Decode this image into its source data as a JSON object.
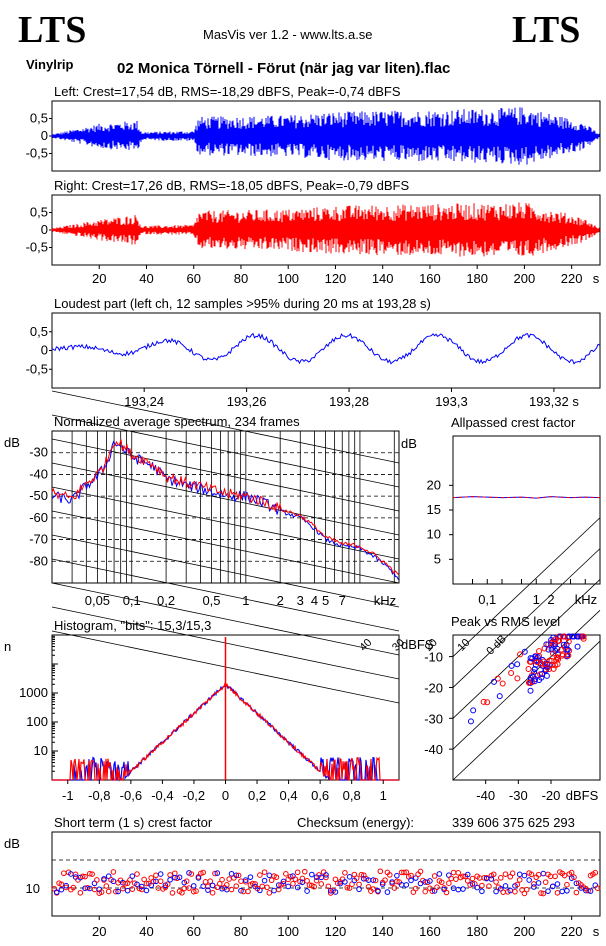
{
  "header": {
    "logo_left": "LTS",
    "logo_right": "LTS",
    "app_title": "MasVis ver 1.2 - www.lts.a.se",
    "source_tag": "Vinylrip",
    "track_title": "02 Monica Törnell - Förut (när jag var liten).flac"
  },
  "colors": {
    "left_channel": "#0000ff",
    "right_channel": "#ff0000",
    "axis": "#000000"
  },
  "chart_data": [
    {
      "type": "line",
      "id": "left-waveform",
      "title": "Left: Crest=17,54 dB, RMS=-18,29 dBFS, Peak=-0,74 dBFS",
      "y_ticks": [
        "0,5",
        "0",
        "-0,5"
      ],
      "x_unit": "s",
      "xlim": [
        0,
        232
      ],
      "ylim": [
        -1,
        1
      ],
      "series": [
        {
          "envelope": [
            [
              0,
              0.05
            ],
            [
              20,
              0.35
            ],
            [
              36,
              0.45
            ],
            [
              38,
              0.12
            ],
            [
              60,
              0.15
            ],
            [
              62,
              0.55
            ],
            [
              100,
              0.6
            ],
            [
              120,
              0.7
            ],
            [
              160,
              0.75
            ],
            [
              190,
              0.8
            ],
            [
              200,
              0.85
            ],
            [
              225,
              0.4
            ],
            [
              232,
              0.05
            ]
          ]
        }
      ]
    },
    {
      "type": "line",
      "id": "right-waveform",
      "title": "Right: Crest=17,26 dB, RMS=-18,05 dBFS, Peak=-0,79 dBFS",
      "y_ticks": [
        "0,5",
        "0",
        "-0,5"
      ],
      "x_ticks": [
        "20",
        "40",
        "60",
        "80",
        "100",
        "120",
        "140",
        "160",
        "180",
        "200",
        "220",
        "s"
      ],
      "x_tick_values": [
        20,
        40,
        60,
        80,
        100,
        120,
        140,
        160,
        180,
        200,
        220
      ],
      "xlim": [
        0,
        232
      ],
      "ylim": [
        -1,
        1
      ],
      "series": [
        {
          "envelope": [
            [
              0,
              0.05
            ],
            [
              20,
              0.3
            ],
            [
              36,
              0.45
            ],
            [
              38,
              0.12
            ],
            [
              60,
              0.15
            ],
            [
              62,
              0.55
            ],
            [
              100,
              0.6
            ],
            [
              120,
              0.7
            ],
            [
              160,
              0.75
            ],
            [
              190,
              0.78
            ],
            [
              200,
              0.8
            ],
            [
              225,
              0.35
            ],
            [
              232,
              0.05
            ]
          ]
        }
      ]
    },
    {
      "type": "line",
      "id": "loudest-part",
      "title": "Loudest part (left  ch, 12 samples >95% during 20 ms at 193,28 s)",
      "y_ticks": [
        "0,5",
        "0",
        "-0,5"
      ],
      "x_ticks": [
        "193,24",
        "193,26",
        "193,28",
        "193,3",
        "193,32 s"
      ],
      "x_tick_values": [
        193.24,
        193.26,
        193.28,
        193.3,
        193.32
      ],
      "xlim": [
        193.222,
        193.329
      ],
      "ylim": [
        -1,
        1
      ]
    },
    {
      "type": "line",
      "id": "average-spectrum",
      "title": "Normalized average spectrum, 234 frames",
      "ylabel": "dB",
      "y_ticks": [
        "-30",
        "-40",
        "-50",
        "-60",
        "-70",
        "-80"
      ],
      "y_tick_values": [
        -30,
        -40,
        -50,
        -60,
        -70,
        -80
      ],
      "x_ticks": [
        "0,05",
        "0,1",
        "0,2",
        "0,5",
        "1",
        "2",
        "3",
        "4",
        "5",
        "7",
        "kHz"
      ],
      "x_tick_values": [
        0.05,
        0.1,
        0.2,
        0.5,
        1,
        2,
        3,
        4,
        5,
        7
      ],
      "xlim": [
        0.02,
        22
      ],
      "ylim": [
        -90,
        -20
      ],
      "series": [
        {
          "points": [
            [
              0.02,
              -50
            ],
            [
              0.03,
              -52
            ],
            [
              0.04,
              -45
            ],
            [
              0.05,
              -41
            ],
            [
              0.06,
              -35
            ],
            [
              0.07,
              -25
            ],
            [
              0.08,
              -27
            ],
            [
              0.1,
              -32
            ],
            [
              0.15,
              -36
            ],
            [
              0.2,
              -42
            ],
            [
              0.3,
              -45
            ],
            [
              0.5,
              -48
            ],
            [
              0.7,
              -50
            ],
            [
              1,
              -50
            ],
            [
              2,
              -57
            ],
            [
              3,
              -60
            ],
            [
              4,
              -65
            ],
            [
              5,
              -70
            ],
            [
              7,
              -73
            ],
            [
              10,
              -74
            ],
            [
              15,
              -80
            ],
            [
              22,
              -88
            ]
          ]
        },
        {
          "points": [
            [
              0.02,
              -49
            ],
            [
              0.03,
              -51
            ],
            [
              0.04,
              -44
            ],
            [
              0.05,
              -40
            ],
            [
              0.06,
              -34
            ],
            [
              0.07,
              -24
            ],
            [
              0.08,
              -26
            ],
            [
              0.1,
              -31
            ],
            [
              0.15,
              -35
            ],
            [
              0.2,
              -41
            ],
            [
              0.3,
              -44
            ],
            [
              0.5,
              -47
            ],
            [
              0.7,
              -49
            ],
            [
              1,
              -50
            ],
            [
              2,
              -56
            ],
            [
              3,
              -59
            ],
            [
              4,
              -64
            ],
            [
              5,
              -69
            ],
            [
              7,
              -72
            ],
            [
              10,
              -73
            ],
            [
              15,
              -79
            ],
            [
              22,
              -87
            ]
          ]
        }
      ]
    },
    {
      "type": "line",
      "id": "allpassed-crest",
      "title": "Allpassed crest factor",
      "ylabel": "dB",
      "y_ticks": [
        "20",
        "15",
        "10",
        "5"
      ],
      "y_tick_values": [
        20,
        15,
        10,
        5
      ],
      "x_ticks": [
        "0,1",
        "1",
        "2",
        "kHz"
      ],
      "x_tick_values": [
        0.1,
        1,
        2
      ],
      "xlim": [
        0.02,
        20
      ],
      "ylim": [
        0,
        30
      ],
      "series": [
        {
          "points": [
            [
              0.02,
              17.5
            ],
            [
              0.05,
              17.7
            ],
            [
              0.1,
              17.6
            ],
            [
              0.2,
              17.5
            ],
            [
              0.5,
              17.6
            ],
            [
              1,
              17.4
            ],
            [
              2,
              17.7
            ],
            [
              5,
              17.5
            ],
            [
              10,
              17.6
            ],
            [
              20,
              17.5
            ]
          ]
        }
      ]
    },
    {
      "type": "line",
      "id": "histogram",
      "title": "Histogram, \"bits\": 15,3/15,3",
      "ylabel": "n",
      "y_ticks": [
        "1000",
        "100",
        "10"
      ],
      "y_tick_values": [
        1000,
        100,
        10
      ],
      "x_ticks": [
        "-1",
        "-0,8",
        "-0,6",
        "-0,4",
        "-0,2",
        "0",
        "0,2",
        "0,4",
        "0,6",
        "0,8",
        "1"
      ],
      "x_tick_values": [
        -1,
        -0.8,
        -0.6,
        -0.4,
        -0.2,
        0,
        0.2,
        0.4,
        0.6,
        0.8,
        1
      ],
      "xlim": [
        -1.1,
        1.1
      ],
      "ylim": [
        1,
        100000
      ]
    },
    {
      "type": "scatter",
      "id": "peak-vs-rms",
      "title": "Peak vs RMS level",
      "ylabel": "dBFS",
      "xlabel": "dBFS",
      "y_ticks": [
        "-10",
        "-20",
        "-30",
        "-40"
      ],
      "y_tick_values": [
        -10,
        -20,
        -30,
        -40
      ],
      "x_ticks": [
        "-40",
        "-30",
        "-20"
      ],
      "x_tick_values": [
        -40,
        -30,
        -20
      ],
      "diagonal_labels": [
        "40",
        "30",
        "20",
        "10",
        "0 dB"
      ],
      "xlim": [
        -50,
        -5
      ],
      "ylim": [
        -50,
        -3
      ]
    },
    {
      "type": "scatter",
      "id": "short-term-crest",
      "title": "Short term (1 s) crest factor",
      "checksum_label": "Checksum (energy):",
      "checksum_value": "339 606 375 625 293",
      "ylabel": "dB",
      "y_ticks": [
        "10"
      ],
      "y_tick_values": [
        10
      ],
      "x_ticks": [
        "20",
        "40",
        "60",
        "80",
        "100",
        "120",
        "140",
        "160",
        "180",
        "200",
        "220",
        "s"
      ],
      "x_tick_values": [
        20,
        40,
        60,
        80,
        100,
        120,
        140,
        160,
        180,
        200,
        220
      ],
      "xlim": [
        0,
        232
      ],
      "ylim": [
        0,
        30
      ]
    }
  ]
}
